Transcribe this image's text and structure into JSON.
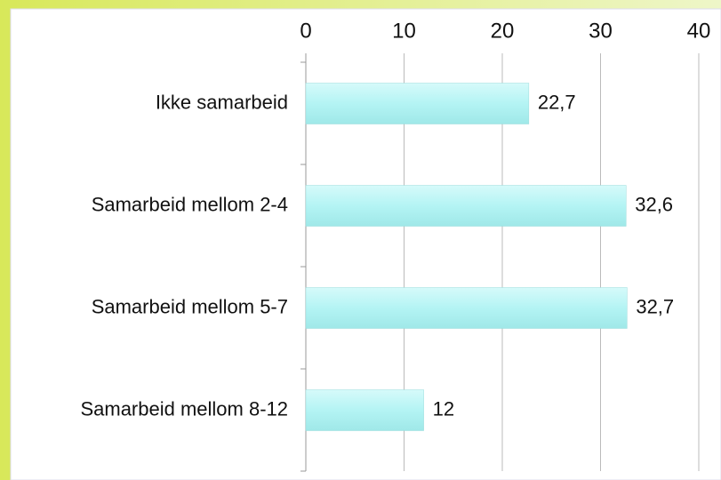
{
  "chart_data": {
    "type": "hbar",
    "categories": [
      "Ikke samarbeid",
      "Samarbeid mellom 2-4",
      "Samarbeid mellom 5-7",
      "Samarbeid mellom 8-12"
    ],
    "values": [
      22.7,
      32.6,
      32.7,
      12
    ],
    "value_labels": [
      "22,7",
      "32,6",
      "32,7",
      "12"
    ],
    "color": "#b4f4f4",
    "xlim": [
      0,
      40
    ],
    "xticks": [
      0,
      10,
      20,
      30,
      40
    ],
    "grid": true
  }
}
